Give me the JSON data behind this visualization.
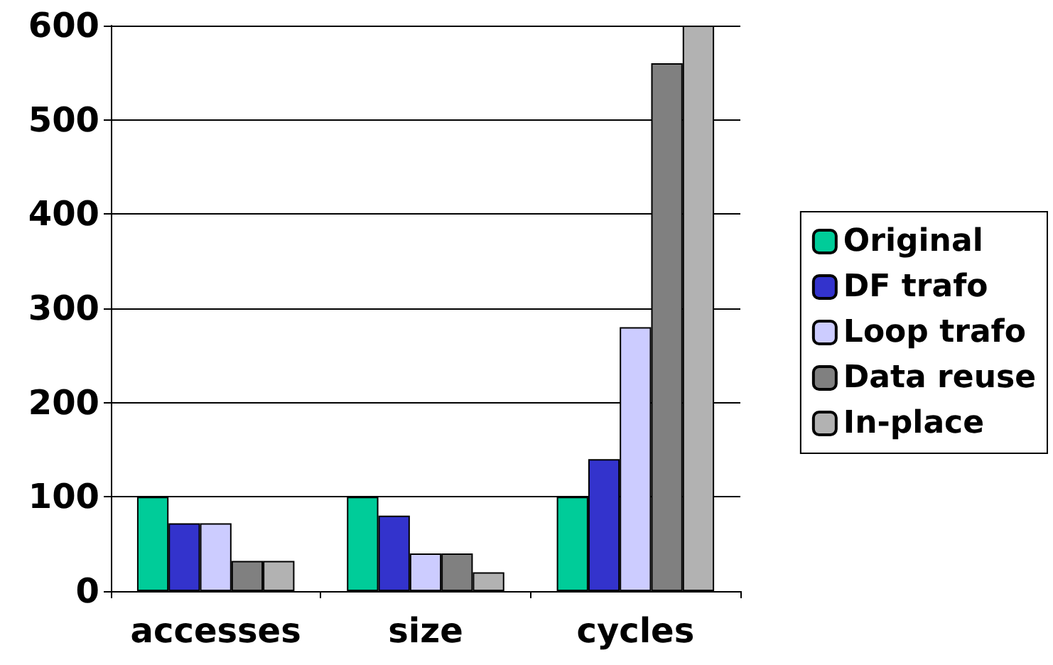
{
  "chart_data": {
    "type": "bar",
    "categories": [
      "accesses",
      "size",
      "cycles"
    ],
    "series": [
      {
        "name": "Original",
        "color": "#00cc99",
        "values": [
          100,
          100,
          100
        ]
      },
      {
        "name": "DF trafo",
        "color": "#3333cc",
        "values": [
          72,
          80,
          140
        ]
      },
      {
        "name": "Loop trafo",
        "color": "#ccccff",
        "values": [
          72,
          40,
          280
        ]
      },
      {
        "name": "Data reuse",
        "color": "#808080",
        "values": [
          32,
          40,
          560
        ]
      },
      {
        "name": "In-place",
        "color": "#b2b2b2",
        "values": [
          32,
          20,
          600
        ]
      }
    ],
    "ylim": [
      0,
      600
    ],
    "yticks": [
      0,
      100,
      200,
      300,
      400,
      500,
      600
    ],
    "grid": "y",
    "legend": "right"
  }
}
